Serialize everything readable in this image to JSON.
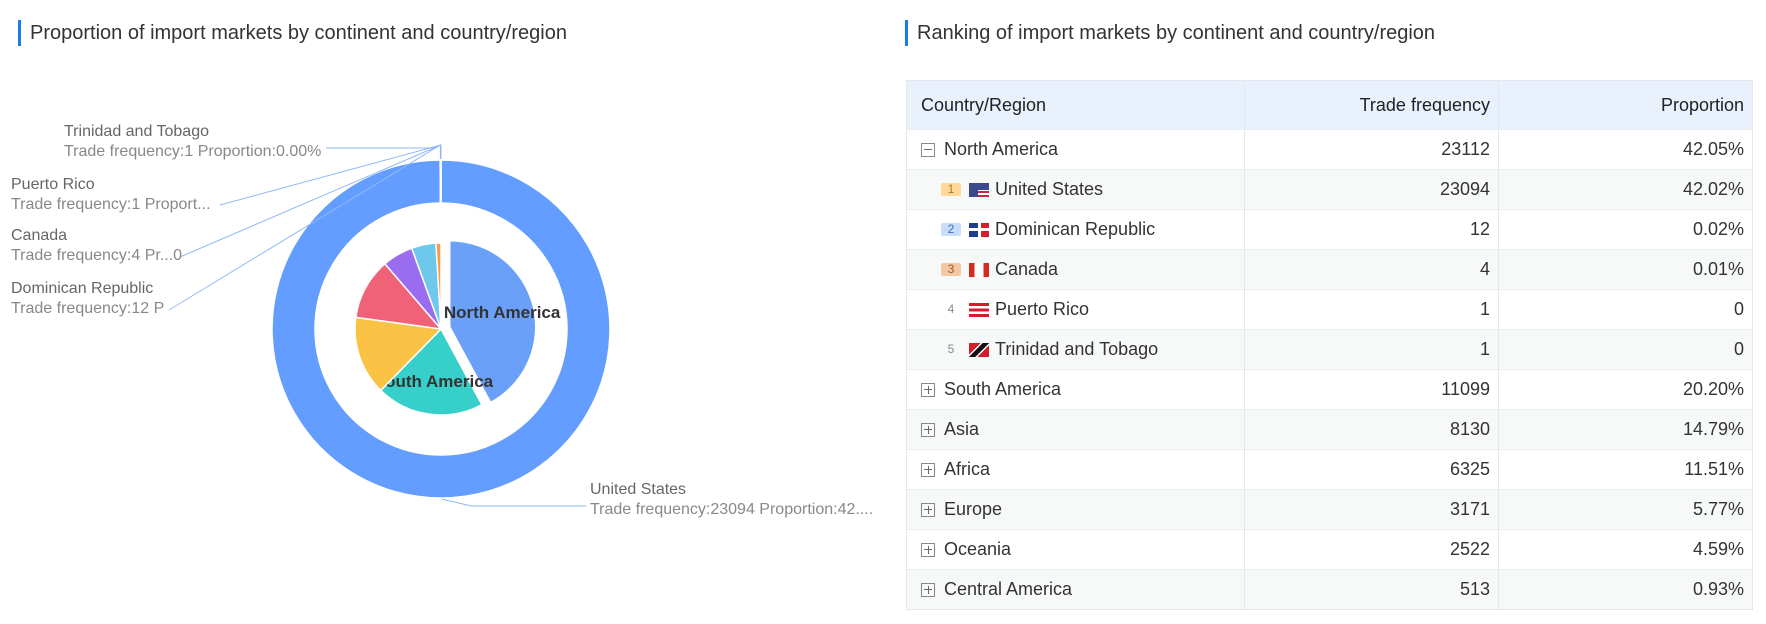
{
  "chart_data": {
    "type": "nested-pie",
    "title": "Proportion of import markets by continent and country/region",
    "inner": {
      "categories": [
        "North America",
        "South America",
        "Asia",
        "Africa",
        "Europe",
        "Oceania",
        "Central America"
      ],
      "values": [
        23112,
        11099,
        8130,
        6325,
        3171,
        2522,
        513
      ],
      "colors": [
        "#6aa0f8",
        "#36cfc9",
        "#fac346",
        "#f06277",
        "#9a6cf0",
        "#6dc8ec",
        "#ff9845"
      ]
    },
    "outer": {
      "categories": [
        "United States",
        "Dominican Republic",
        "Canada",
        "Puerto Rico",
        "Trinidad and Tobago"
      ],
      "values": [
        23094,
        12,
        4,
        1,
        1
      ],
      "colors": [
        "#629dff",
        "#7dadff",
        "#90b9ff",
        "#a3c5ff",
        "#b6d1ff"
      ],
      "label_details": [
        "Trade frequency:23094 Proportion:42....",
        "Trade frequency:12 P",
        "Trade frequency:4 Pr...0",
        "Trade frequency:1 Proport...",
        "Trade frequency:1 Proportion:0.00%"
      ]
    }
  },
  "table": {
    "title": "Ranking of import markets by continent and country/region",
    "columns": [
      "Country/Region",
      "Trade frequency",
      "Proportion"
    ],
    "rows": [
      {
        "name": "North America",
        "frequency": 23112,
        "proportion": "42.05%",
        "expanded": true
      },
      {
        "rank": 1,
        "name": "United States",
        "frequency": 23094,
        "proportion": "42.02%"
      },
      {
        "rank": 2,
        "name": "Dominican Republic",
        "frequency": 12,
        "proportion": "0.02%"
      },
      {
        "rank": 3,
        "name": "Canada",
        "frequency": 4,
        "proportion": "0.01%"
      },
      {
        "rank": 4,
        "name": "Puerto Rico",
        "frequency": 1,
        "proportion": "0"
      },
      {
        "rank": 5,
        "name": "Trinidad and Tobago",
        "frequency": 1,
        "proportion": "0"
      },
      {
        "name": "South America",
        "frequency": 11099,
        "proportion": "20.20%",
        "expanded": false
      },
      {
        "name": "Asia",
        "frequency": 8130,
        "proportion": "14.79%",
        "expanded": false
      },
      {
        "name": "Africa",
        "frequency": 6325,
        "proportion": "11.51%",
        "expanded": false
      },
      {
        "name": "Europe",
        "frequency": 3171,
        "proportion": "5.77%",
        "expanded": false
      },
      {
        "name": "Oceania",
        "frequency": 2522,
        "proportion": "4.59%",
        "expanded": false
      },
      {
        "name": "Central America",
        "frequency": 513,
        "proportion": "0.93%",
        "expanded": false
      }
    ]
  }
}
